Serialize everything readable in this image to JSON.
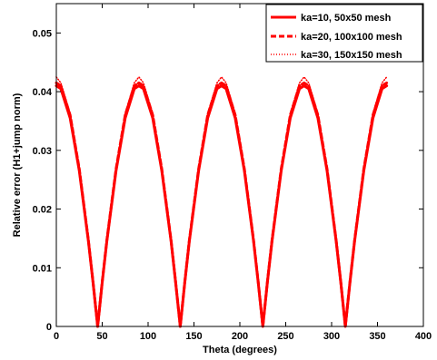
{
  "chart_data": {
    "type": "line",
    "xlabel": "Theta (degrees)",
    "ylabel": "Relative error (H1+jump norm)",
    "xlim": [
      0,
      400
    ],
    "ylim": [
      0,
      0.055
    ],
    "xticks": [
      0,
      50,
      100,
      150,
      200,
      250,
      300,
      350,
      400
    ],
    "yticks": [
      0,
      0.01,
      0.02,
      0.03,
      0.04,
      0.05
    ],
    "xtick_labels": [
      "0",
      "50",
      "100",
      "150",
      "200",
      "250",
      "300",
      "350",
      "400"
    ],
    "ytick_labels": [
      "0",
      "0.01",
      "0.02",
      "0.03",
      "0.04",
      "0.05"
    ],
    "grid": false,
    "legend_position": "top-right",
    "series": [
      {
        "name": "ka=10, 50x50 mesh",
        "style": "solid",
        "color": "#ff0000",
        "x": [
          0,
          5,
          15,
          25,
          35,
          40,
          45,
          50,
          55,
          65,
          75,
          85,
          90,
          95,
          105,
          115,
          125,
          130,
          135,
          140,
          145,
          155,
          165,
          175,
          180,
          185,
          195,
          205,
          215,
          220,
          225,
          230,
          235,
          245,
          255,
          265,
          270,
          275,
          285,
          295,
          305,
          310,
          315,
          320,
          325,
          335,
          345,
          355,
          360
        ],
        "y": [
          0.041,
          0.0405,
          0.0355,
          0.0265,
          0.0145,
          0.0075,
          0.0,
          0.0075,
          0.0145,
          0.0265,
          0.0355,
          0.0405,
          0.041,
          0.0405,
          0.0355,
          0.0265,
          0.0145,
          0.0075,
          0.0,
          0.0075,
          0.0145,
          0.0265,
          0.0355,
          0.0405,
          0.041,
          0.0405,
          0.0355,
          0.0265,
          0.0145,
          0.0075,
          0.0,
          0.0075,
          0.0145,
          0.0265,
          0.0355,
          0.0405,
          0.041,
          0.0405,
          0.0355,
          0.0265,
          0.0145,
          0.0075,
          0.0,
          0.0075,
          0.0145,
          0.0265,
          0.0355,
          0.0405,
          0.041
        ]
      },
      {
        "name": "ka=20, 100x100 mesh",
        "style": "dashed",
        "color": "#ff0000",
        "x": [
          0,
          5,
          15,
          25,
          35,
          40,
          45,
          50,
          55,
          65,
          75,
          85,
          90,
          95,
          105,
          115,
          125,
          130,
          135,
          140,
          145,
          155,
          165,
          175,
          180,
          185,
          195,
          205,
          215,
          220,
          225,
          230,
          235,
          245,
          255,
          265,
          270,
          275,
          285,
          295,
          305,
          310,
          315,
          320,
          325,
          335,
          345,
          355,
          360
        ],
        "y": [
          0.0415,
          0.041,
          0.036,
          0.0268,
          0.0147,
          0.0076,
          0.0,
          0.0076,
          0.0147,
          0.0268,
          0.036,
          0.041,
          0.0415,
          0.041,
          0.036,
          0.0268,
          0.0147,
          0.0076,
          0.0,
          0.0076,
          0.0147,
          0.0268,
          0.036,
          0.041,
          0.0415,
          0.041,
          0.036,
          0.0268,
          0.0147,
          0.0076,
          0.0,
          0.0076,
          0.0147,
          0.0268,
          0.036,
          0.041,
          0.0415,
          0.041,
          0.036,
          0.0268,
          0.0147,
          0.0076,
          0.0,
          0.0076,
          0.0147,
          0.0268,
          0.036,
          0.041,
          0.0415
        ]
      },
      {
        "name": "ka=30, 150x150 mesh",
        "style": "dotted",
        "color": "#ff0000",
        "x": [
          0,
          5,
          15,
          25,
          35,
          40,
          45,
          50,
          55,
          65,
          75,
          85,
          90,
          95,
          105,
          115,
          125,
          130,
          135,
          140,
          145,
          155,
          165,
          175,
          180,
          185,
          195,
          205,
          215,
          220,
          225,
          230,
          235,
          245,
          255,
          265,
          270,
          275,
          285,
          295,
          305,
          310,
          315,
          320,
          325,
          335,
          345,
          355,
          360
        ],
        "y": [
          0.0425,
          0.0415,
          0.0363,
          0.027,
          0.0148,
          0.0077,
          0.0,
          0.0077,
          0.0148,
          0.027,
          0.0363,
          0.0415,
          0.0425,
          0.0415,
          0.0363,
          0.027,
          0.0148,
          0.0077,
          0.0,
          0.0077,
          0.0148,
          0.027,
          0.0363,
          0.0415,
          0.0425,
          0.0415,
          0.0363,
          0.027,
          0.0148,
          0.0077,
          0.0,
          0.0077,
          0.0148,
          0.027,
          0.0363,
          0.0415,
          0.0425,
          0.0415,
          0.0363,
          0.027,
          0.0148,
          0.0077,
          0.0,
          0.0077,
          0.0148,
          0.027,
          0.0363,
          0.0415,
          0.0425
        ]
      }
    ]
  }
}
